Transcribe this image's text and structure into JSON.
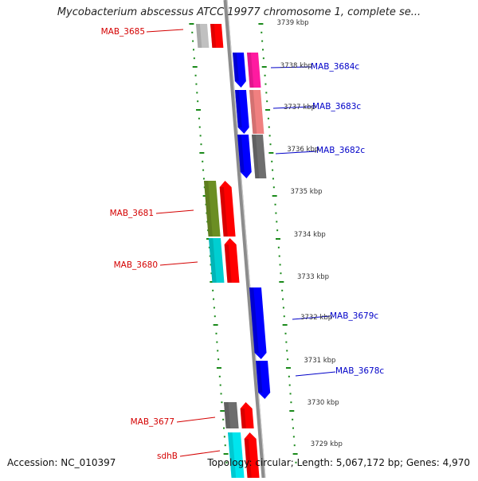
{
  "title": "Mycobacterium abscessus ATCC 19977 chromosome 1, complete se...",
  "footer": {
    "accession": "Accession: NC_010397",
    "summary": "Topology: circular; Length: 5,067,172 bp; Genes: 4,970"
  },
  "colors": {
    "forward_label": "#d40000",
    "reverse_label": "#0000c8",
    "backbone": "#8c8c8c",
    "tick": "#1a8a1a"
  },
  "scale_labels": [
    "3739 kbp",
    "3738 kbp",
    "3737 kbp",
    "3736 kbp",
    "3735 kbp",
    "3734 kbp",
    "3733 kbp",
    "3732 kbp",
    "3731 kbp",
    "3730 kbp",
    "3729 kbp"
  ],
  "genes": [
    {
      "label": "MAB_3685",
      "strand": "forward",
      "gene_color": "#c0c0c0",
      "cds_color": "#ff0000"
    },
    {
      "label": "MAB_3684c",
      "strand": "reverse",
      "gene_color": "#0000ff",
      "cds_color": "#ff1aa0"
    },
    {
      "label": "MAB_3683c",
      "strand": "reverse",
      "gene_color": "#0000ff",
      "cds_color": "#f08080"
    },
    {
      "label": "MAB_3682c",
      "strand": "reverse",
      "gene_color": "#0000ff",
      "cds_color": "#6e6e6e"
    },
    {
      "label": "MAB_3681",
      "strand": "forward",
      "gene_color": "#6b8e23",
      "cds_color": "#ff0000"
    },
    {
      "label": "MAB_3680",
      "strand": "forward",
      "gene_color": "#00ced1",
      "cds_color": "#ff0000"
    },
    {
      "label": "MAB_3679c",
      "strand": "reverse",
      "gene_color": "#0000ff",
      "cds_color": ""
    },
    {
      "label": "MAB_3678c",
      "strand": "reverse",
      "gene_color": "#0000ff",
      "cds_color": ""
    },
    {
      "label": "MAB_3677",
      "strand": "forward",
      "gene_color": "#6e6e6e",
      "cds_color": "#ff0000"
    },
    {
      "label": "sdhB",
      "strand": "forward",
      "gene_color": "#00e5ee",
      "cds_color": "#ff0000"
    }
  ]
}
